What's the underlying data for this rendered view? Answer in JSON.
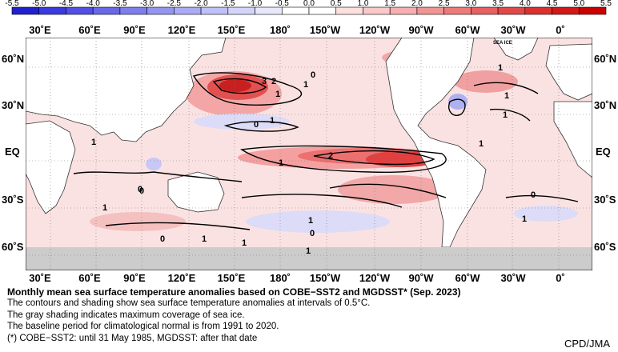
{
  "colorbar": {
    "ticks": [
      "-5.5",
      "-5.0",
      "-4.5",
      "-4.0",
      "-3.5",
      "-3.0",
      "-2.5",
      "-2.0",
      "-1.5",
      "-1.0",
      "-0.5",
      "0.0",
      "0.5",
      "1.0",
      "1.5",
      "2.0",
      "2.5",
      "3.0",
      "3.5",
      "4.0",
      "4.5",
      "5.0",
      "5.5"
    ],
    "colors": [
      "#2020d0",
      "#3a3ae0",
      "#5050e6",
      "#6868ea",
      "#7e7eee",
      "#9494f2",
      "#aaaaf5",
      "#c0c0f8",
      "#d4d4fb",
      "#e8e8fd",
      "#ffffff",
      "#ffffff",
      "#fde0e0",
      "#fac8c8",
      "#f6aeae",
      "#f29494",
      "#ee7a7a",
      "#e86060",
      "#e24848",
      "#dc3030",
      "#d41818",
      "#cc0000"
    ]
  },
  "lon_labels": [
    "30˚E",
    "60˚E",
    "90˚E",
    "120˚E",
    "150˚E",
    "180˚",
    "150˚W",
    "120˚W",
    "90˚W",
    "60˚W",
    "30˚W",
    "0˚"
  ],
  "lat_labels": [
    "60˚N",
    "30˚N",
    "EQ",
    "30˚S",
    "60˚S"
  ],
  "sea_ice_label": "SEA ICE",
  "contour_labels": [
    "3",
    "2",
    "1",
    "0",
    "1",
    "0",
    "1",
    "1",
    "0",
    "1",
    "2",
    "1",
    "1",
    "0",
    "0",
    "1",
    "0",
    "1",
    "0",
    "1",
    "1",
    "1",
    "1",
    "1",
    "1"
  ],
  "caption": {
    "title": "Monthly mean sea surface temperature anomalies based on COBE−SST2 and MGDSST* (Sep. 2023)",
    "line1": "The contours and shading show sea surface temperature anomalies at intervals of 0.5°C.",
    "line2": "The gray shading indicates maximum coverage of sea ice.",
    "line3": "The baseline period for climatological normal is from 1991 to 2020.",
    "line4": "(*) COBE−SST2: until 31 May 1985, MGDSST: after that date"
  },
  "credit": "CPD/JMA"
}
